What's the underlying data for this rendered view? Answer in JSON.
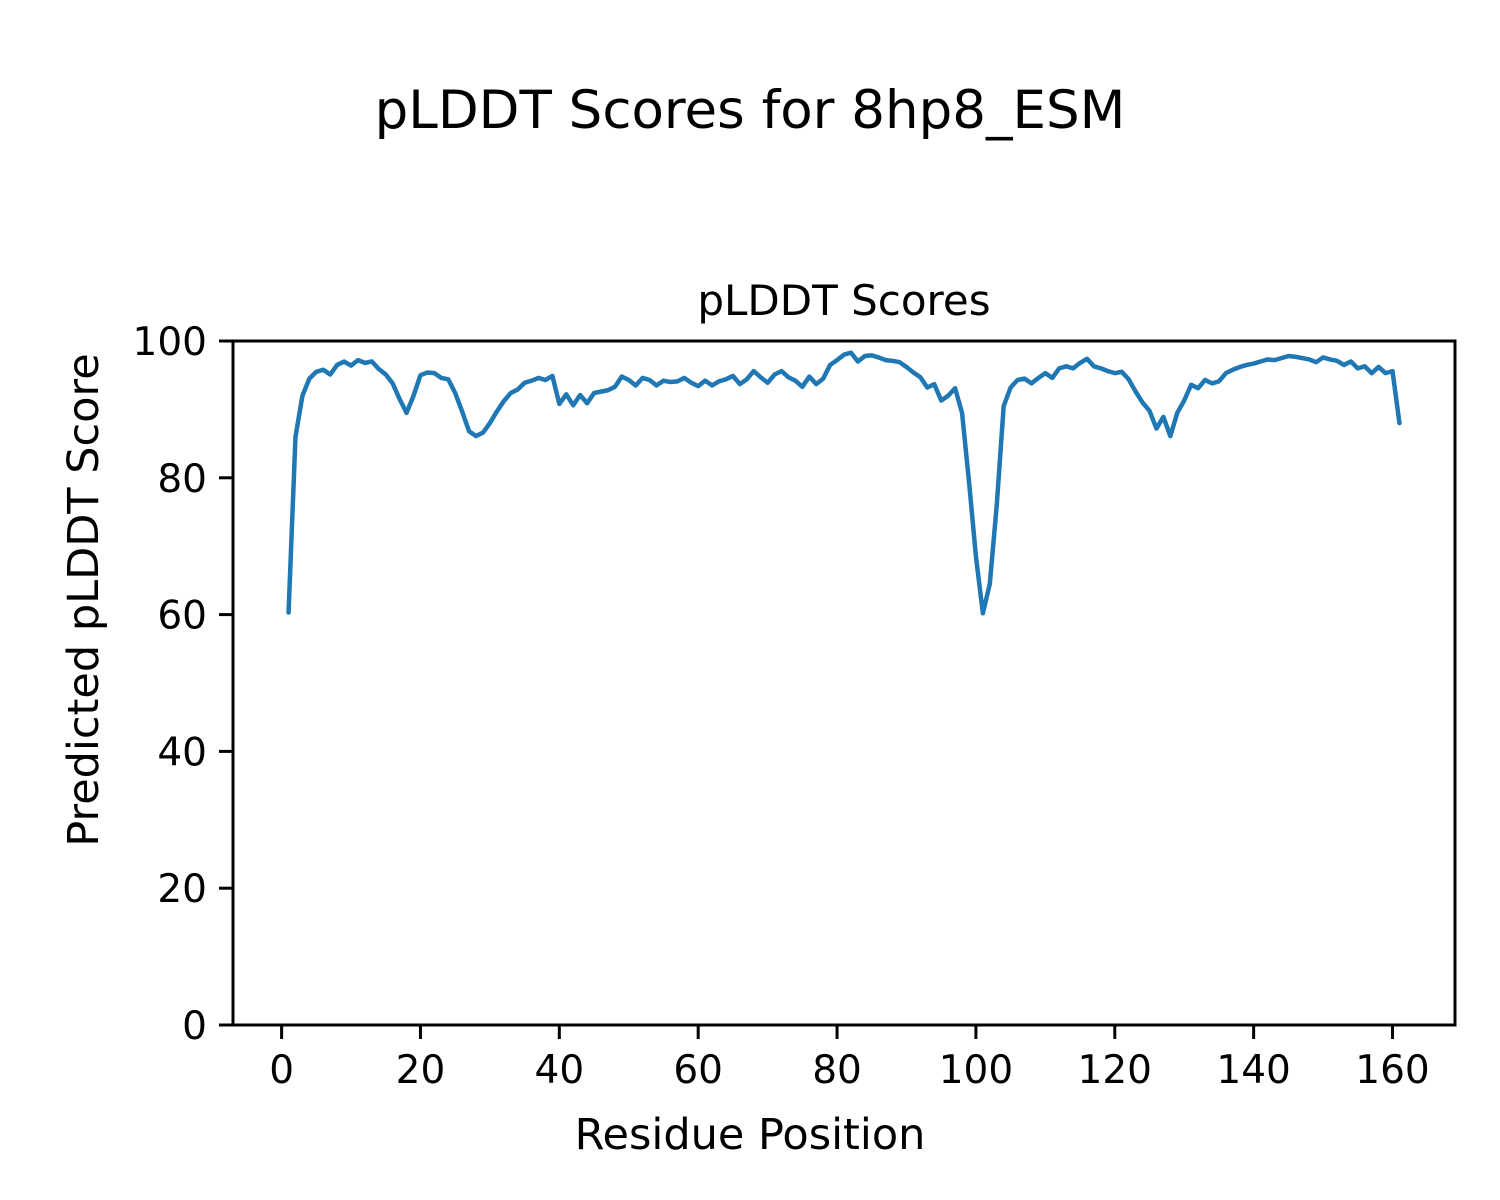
{
  "chart_data": {
    "type": "line",
    "suptitle": "pLDDT Scores for 8hp8_ESM",
    "title": "pLDDT Scores",
    "xlabel": "Residue Position",
    "ylabel": "Predicted pLDDT Score",
    "xlim": [
      -7,
      169
    ],
    "ylim": [
      0,
      100
    ],
    "x_ticks": [
      0,
      20,
      40,
      60,
      80,
      100,
      120,
      140,
      160
    ],
    "y_ticks": [
      0,
      20,
      40,
      60,
      80,
      100
    ],
    "grid": false,
    "legend": "none",
    "line_color": "#1f77b4",
    "series": [
      {
        "name": "pLDDT",
        "x_start": 1,
        "x_step": 1,
        "values": [
          60.3,
          86.0,
          92.0,
          94.5,
          95.5,
          95.8,
          95.1,
          96.5,
          97.0,
          96.4,
          97.2,
          96.8,
          97.0,
          95.9,
          95.1,
          93.8,
          91.5,
          89.5,
          92.0,
          95.0,
          95.4,
          95.3,
          94.6,
          94.4,
          92.4,
          89.7,
          86.8,
          86.1,
          86.6,
          88.0,
          89.7,
          91.2,
          92.4,
          92.9,
          93.9,
          94.2,
          94.6,
          94.3,
          94.9,
          90.8,
          92.2,
          90.6,
          92.1,
          90.9,
          92.4,
          92.6,
          92.8,
          93.3,
          94.8,
          94.3,
          93.5,
          94.6,
          94.3,
          93.5,
          94.2,
          94.0,
          94.1,
          94.6,
          93.9,
          93.4,
          94.2,
          93.5,
          94.1,
          94.4,
          94.9,
          93.7,
          94.4,
          95.6,
          94.7,
          93.9,
          95.1,
          95.6,
          94.7,
          94.2,
          93.3,
          94.8,
          93.7,
          94.5,
          96.5,
          97.2,
          98.0,
          98.3,
          97.0,
          97.8,
          97.9,
          97.6,
          97.2,
          97.1,
          96.9,
          96.2,
          95.4,
          94.7,
          93.2,
          93.7,
          91.3,
          92.0,
          93.1,
          89.5,
          79.5,
          68.5,
          60.2,
          64.5,
          76.0,
          90.5,
          93.2,
          94.3,
          94.5,
          93.8,
          94.6,
          95.3,
          94.6,
          96.0,
          96.3,
          96.0,
          96.8,
          97.4,
          96.3,
          96.0,
          95.6,
          95.3,
          95.5,
          94.4,
          92.6,
          91.0,
          89.8,
          87.2,
          88.9,
          86.1,
          89.5,
          91.3,
          93.6,
          93.1,
          94.3,
          93.8,
          94.1,
          95.3,
          95.8,
          96.2,
          96.5,
          96.7,
          97.0,
          97.3,
          97.2,
          97.5,
          97.8,
          97.7,
          97.5,
          97.3,
          96.9,
          97.6,
          97.3,
          97.1,
          96.5,
          97.0,
          96.0,
          96.3,
          95.3,
          96.2,
          95.3,
          95.6,
          88.0
        ]
      }
    ]
  }
}
